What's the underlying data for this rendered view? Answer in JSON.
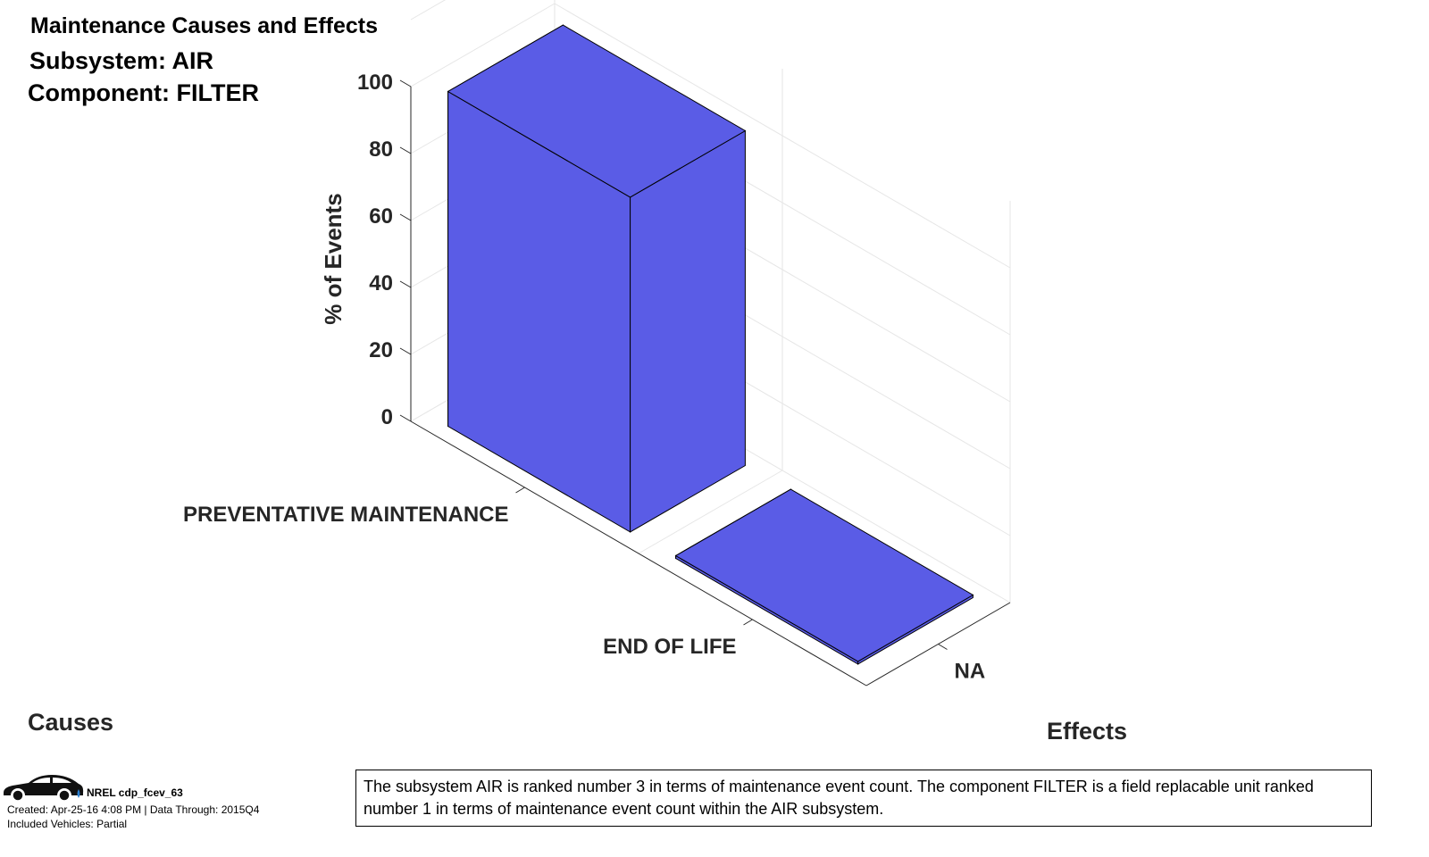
{
  "header": {
    "title": "Maintenance Causes and Effects",
    "subsystem": "Subsystem: AIR",
    "component": "Component: FILTER"
  },
  "chart_data": {
    "type": "bar3d",
    "zlabel": "% of Events",
    "xlabel": "Causes",
    "ylabel": "Effects",
    "z_ticks": [
      "0",
      "20",
      "40",
      "60",
      "80",
      "100"
    ],
    "zlim": [
      0,
      100
    ],
    "causes": [
      "PREVENTATIVE MAINTENANCE",
      "END OF LIFE"
    ],
    "effects": [
      "NA"
    ],
    "bars": [
      {
        "cause": "PREVENTATIVE MAINTENANCE",
        "effect": "NA",
        "value": 100
      },
      {
        "cause": "END OF LIFE",
        "effect": "NA",
        "value": 0
      }
    ],
    "bar_color": "#5a5ce6",
    "grid": true
  },
  "footer": {
    "source": "NREL cdp_fcev_63",
    "created": "Created: Apr-25-16  4:08 PM | Data Through: 2015Q4",
    "vehicles": "Included Vehicles: Partial",
    "note": "The subsystem AIR is ranked number 3 in terms of maintenance event count.  The component FILTER is a field replacable unit ranked number 1 in terms of maintenance event count within the AIR subsystem."
  }
}
